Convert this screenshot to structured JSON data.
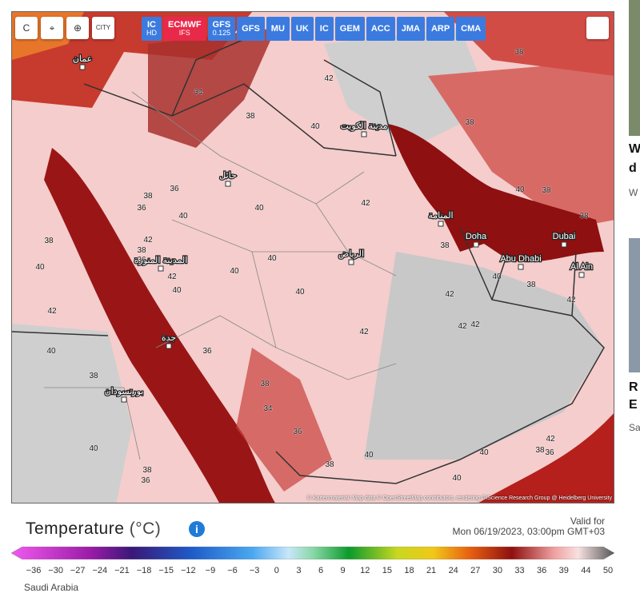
{
  "toolbar": {
    "tools": [
      "C",
      "CITY"
    ],
    "models": [
      {
        "label": "IC",
        "sub": "HD",
        "active": false
      },
      {
        "label": "ECMWF",
        "sub": "IFS",
        "active": true
      },
      {
        "label": "GFS",
        "sub": "0.125",
        "active": false
      },
      {
        "label": "GFS",
        "active": false
      },
      {
        "label": "MU",
        "active": false
      },
      {
        "label": "UK",
        "active": false
      },
      {
        "label": "IC",
        "active": false
      },
      {
        "label": "GEM",
        "active": false
      },
      {
        "label": "ACC",
        "active": false
      },
      {
        "label": "JMA",
        "active": false
      },
      {
        "label": "ARP",
        "active": false
      },
      {
        "label": "CMA",
        "active": false
      }
    ]
  },
  "map": {
    "cities": [
      "Doha",
      "Dubai",
      "Abu Dhabi",
      "Al Ain",
      "الرياض",
      "مدينة الكويت",
      "المدينة المنورة",
      "جدة",
      "المنامة",
      "بورتسودان",
      "حائل",
      "عمان"
    ],
    "temperatures": [
      "34",
      "38",
      "40",
      "42",
      "36",
      "38",
      "36",
      "40",
      "40",
      "42",
      "38",
      "42",
      "38",
      "36",
      "40",
      "40",
      "40",
      "40",
      "42",
      "40",
      "42",
      "42",
      "42",
      "42",
      "38",
      "40",
      "38",
      "42",
      "40",
      "38",
      "38",
      "38",
      "38",
      "42",
      "36",
      "38",
      "38",
      "34",
      "36",
      "40",
      "40",
      "38",
      "40",
      "42",
      "38",
      "36",
      "40",
      "36",
      "38",
      "40"
    ],
    "attribution": "© Kartenmaterial: Map data © OpenStreetMap contributors, rendering GIScience Research Group @ Heidelberg University"
  },
  "legend": {
    "title": "Temperature",
    "unit": "(°C)",
    "valid_label": "Valid for",
    "valid_time": "Mon 06/19/2023, 03:00pm GMT+03",
    "ticks": [
      "−36",
      "−30",
      "−27",
      "−24",
      "−21",
      "−18",
      "−15",
      "−12",
      "−9",
      "−6",
      "−3",
      "0",
      "3",
      "6",
      "9",
      "12",
      "15",
      "18",
      "21",
      "24",
      "27",
      "30",
      "33",
      "36",
      "39",
      "44",
      "50"
    ],
    "region": "Saudi Arabia"
  },
  "side": {
    "items": [
      "W",
      "d",
      "W",
      "R",
      "E",
      "Sa"
    ]
  }
}
